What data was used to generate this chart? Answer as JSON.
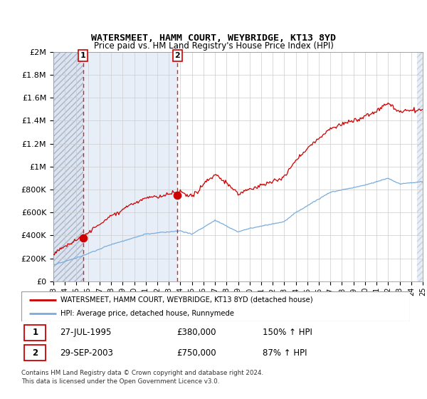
{
  "title": "WATERSMEET, HAMM COURT, WEYBRIDGE, KT13 8YD",
  "subtitle": "Price paid vs. HM Land Registry's House Price Index (HPI)",
  "sale1_date": "27-JUL-1995",
  "sale1_price": 380000,
  "sale1_label": "1",
  "sale1_year": 1995.57,
  "sale2_date": "29-SEP-2003",
  "sale2_price": 750000,
  "sale2_label": "2",
  "sale2_year": 2003.75,
  "legend_line1": "WATERSMEET, HAMM COURT, WEYBRIDGE, KT13 8YD (detached house)",
  "legend_line2": "HPI: Average price, detached house, Runnymede",
  "table_row1": [
    "1",
    "27-JUL-1995",
    "£380,000",
    "150% ↑ HPI"
  ],
  "table_row2": [
    "2",
    "29-SEP-2003",
    "£750,000",
    "87% ↑ HPI"
  ],
  "footnote1": "Contains HM Land Registry data © Crown copyright and database right 2024.",
  "footnote2": "This data is licensed under the Open Government Licence v3.0.",
  "ylim": [
    0,
    2000000
  ],
  "xlim_start": 1993,
  "xlim_end": 2025,
  "red_line_color": "#cc0000",
  "blue_line_color": "#7aaddd",
  "hatch_bg_color": "#dce4f0",
  "mid_bg_color": "#e8eef8",
  "plot_bg_color": "#ffffff",
  "grid_color": "#cccccc",
  "hatch_edge_color": "#aab4c8"
}
